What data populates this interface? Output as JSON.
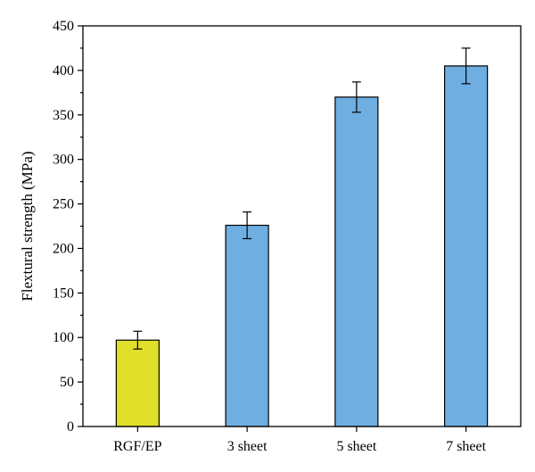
{
  "chart_data": {
    "type": "bar",
    "categories": [
      "RGF/EP",
      "3 sheet",
      "5 sheet",
      "7 sheet"
    ],
    "values": [
      97,
      226,
      370,
      405
    ],
    "errors": [
      10,
      15,
      17,
      20
    ],
    "bar_colors": [
      "#e0e02a",
      "#6faee0",
      "#6faee0",
      "#6faee0"
    ],
    "ylabel": "Flextural strength (MPa)",
    "xlabel": "",
    "ylim": [
      0,
      450
    ],
    "yticks": [
      0,
      50,
      100,
      150,
      200,
      250,
      300,
      350,
      400,
      450
    ],
    "grid": false,
    "legend": "none"
  }
}
